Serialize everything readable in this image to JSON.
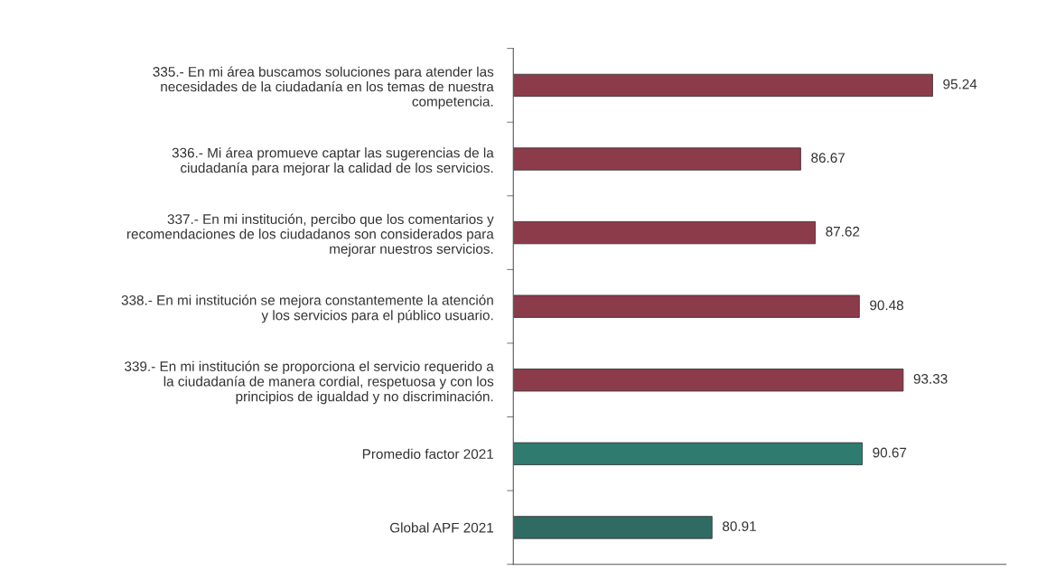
{
  "chart_data": {
    "type": "bar",
    "orientation": "horizontal",
    "categories": [
      "335.- En mi área buscamos soluciones para atender las\nnecesidades de la ciudadanía en los temas de nuestra\ncompetencia.",
      "336.- Mi área promueve captar las sugerencias de la\nciudadanía para mejorar la calidad de los servicios.",
      "337.- En mi institución, percibo que los comentarios y\nrecomendaciones de los ciudadanos son considerados para\nmejorar nuestros servicios.",
      "338.- En mi institución se mejora constantemente la atención\ny los servicios para el público usuario.",
      "339.- En mi institución se proporciona el servicio requerido a\nla ciudadanía de manera cordial, respetuosa y con los\nprincipios de igualdad y no discriminación.",
      "Promedio factor 2021",
      "Global APF 2021"
    ],
    "values": [
      95.24,
      86.67,
      87.62,
      90.48,
      93.33,
      90.67,
      80.91
    ],
    "colors": [
      "#8c3b4b",
      "#8c3b4b",
      "#8c3b4b",
      "#8c3b4b",
      "#8c3b4b",
      "#2f7b70",
      "#2f6b62"
    ],
    "xlim": [
      68,
      100
    ],
    "data_labels": true,
    "tick_labels": "y",
    "grid": false,
    "legend": false
  }
}
